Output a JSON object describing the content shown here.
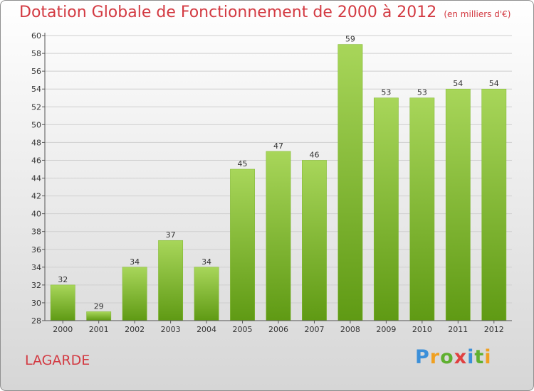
{
  "header": {
    "title": "Dotation Globale de Fonctionnement de 2000 à 2012",
    "subtitle": "(en milliers d'€)"
  },
  "footer": {
    "place": "LAGARDE",
    "brand": "Proxiti"
  },
  "colors": {
    "bar_top": "#a8d65a",
    "bar_bottom": "#5f9a14",
    "title": "#d33a42",
    "grid": "#cfcfcf"
  },
  "chart_data": {
    "type": "bar",
    "title": "Dotation Globale de Fonctionnement de 2000 à 2012",
    "subtitle": "(en milliers d'€)",
    "xlabel": "",
    "ylabel": "",
    "categories": [
      "2000",
      "2001",
      "2002",
      "2003",
      "2004",
      "2005",
      "2006",
      "2007",
      "2008",
      "2009",
      "2010",
      "2011",
      "2012"
    ],
    "values": [
      32,
      29,
      34,
      37,
      34,
      45,
      47,
      46,
      59,
      53,
      53,
      54,
      54
    ],
    "ylim": [
      28,
      60
    ],
    "yticks": [
      28,
      30,
      32,
      34,
      36,
      38,
      40,
      42,
      44,
      46,
      48,
      50,
      52,
      54,
      56,
      58,
      60
    ],
    "grid": true,
    "legend": "none"
  }
}
